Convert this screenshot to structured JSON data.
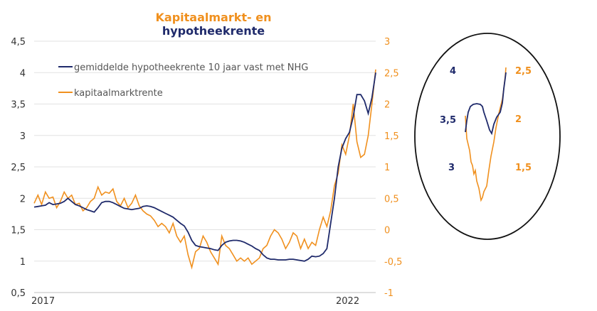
{
  "chart_data": {
    "type": "line",
    "title": [
      "Kapitaalmarkt- en",
      "hypotheekrente"
    ],
    "x_labels": [
      "2017",
      "2022"
    ],
    "y_left": {
      "ticks": [
        "0,5",
        "1",
        "1,5",
        "2",
        "2,5",
        "3",
        "3,5",
        "4",
        "4,5"
      ],
      "range": [
        0.5,
        4.5
      ]
    },
    "y_right": {
      "ticks": [
        "-1",
        "-0,5",
        "0",
        "0,5",
        "1",
        "1,5",
        "2",
        "2,5",
        "3"
      ],
      "range": [
        -1,
        3
      ]
    },
    "series": [
      {
        "name": "gemiddelde hypotheekrente 10 jaar vast met NHG",
        "axis": "left",
        "color": "#1f2a6b",
        "points": [
          [
            0,
            1.86
          ],
          [
            1,
            1.87
          ],
          [
            2,
            1.88
          ],
          [
            3,
            1.89
          ],
          [
            4,
            1.93
          ],
          [
            5,
            1.9
          ],
          [
            6,
            1.91
          ],
          [
            7,
            1.92
          ],
          [
            8,
            1.95
          ],
          [
            9,
            2.0
          ],
          [
            10,
            1.95
          ],
          [
            11,
            1.9
          ],
          [
            12,
            1.88
          ],
          [
            13,
            1.85
          ],
          [
            14,
            1.82
          ],
          [
            15,
            1.8
          ],
          [
            16,
            1.78
          ],
          [
            17,
            1.85
          ],
          [
            18,
            1.93
          ],
          [
            19,
            1.95
          ],
          [
            20,
            1.95
          ],
          [
            21,
            1.93
          ],
          [
            22,
            1.9
          ],
          [
            23,
            1.87
          ],
          [
            24,
            1.84
          ],
          [
            25,
            1.83
          ],
          [
            26,
            1.82
          ],
          [
            27,
            1.83
          ],
          [
            28,
            1.84
          ],
          [
            29,
            1.87
          ],
          [
            30,
            1.88
          ],
          [
            31,
            1.87
          ],
          [
            32,
            1.85
          ],
          [
            33,
            1.82
          ],
          [
            34,
            1.79
          ],
          [
            35,
            1.76
          ],
          [
            36,
            1.73
          ],
          [
            37,
            1.7
          ],
          [
            38,
            1.65
          ],
          [
            39,
            1.6
          ],
          [
            40,
            1.56
          ],
          [
            41,
            1.46
          ],
          [
            42,
            1.33
          ],
          [
            43,
            1.25
          ],
          [
            44,
            1.23
          ],
          [
            45,
            1.22
          ],
          [
            46,
            1.21
          ],
          [
            47,
            1.2
          ],
          [
            48,
            1.18
          ],
          [
            49,
            1.17
          ],
          [
            50,
            1.25
          ],
          [
            51,
            1.3
          ],
          [
            52,
            1.32
          ],
          [
            53,
            1.33
          ],
          [
            54,
            1.33
          ],
          [
            55,
            1.32
          ],
          [
            56,
            1.3
          ],
          [
            57,
            1.27
          ],
          [
            58,
            1.24
          ],
          [
            59,
            1.2
          ],
          [
            60,
            1.17
          ],
          [
            61,
            1.1
          ],
          [
            62,
            1.05
          ],
          [
            63,
            1.03
          ],
          [
            64,
            1.03
          ],
          [
            65,
            1.02
          ],
          [
            66,
            1.02
          ],
          [
            67,
            1.02
          ],
          [
            68,
            1.03
          ],
          [
            69,
            1.03
          ],
          [
            70,
            1.02
          ],
          [
            71,
            1.01
          ],
          [
            72,
            1.0
          ],
          [
            73,
            1.03
          ],
          [
            74,
            1.08
          ],
          [
            75,
            1.07
          ],
          [
            76,
            1.08
          ],
          [
            77,
            1.12
          ],
          [
            78,
            1.2
          ],
          [
            79,
            1.6
          ],
          [
            80,
            2.0
          ],
          [
            81,
            2.5
          ],
          [
            82,
            2.8
          ],
          [
            83,
            2.95
          ],
          [
            84,
            3.05
          ],
          [
            85,
            3.3
          ],
          [
            86,
            3.65
          ],
          [
            87,
            3.65
          ],
          [
            88,
            3.55
          ],
          [
            89,
            3.35
          ],
          [
            90,
            3.6
          ],
          [
            91,
            4.0
          ]
        ]
      },
      {
        "name": "kapitaalmarktrente",
        "axis": "right",
        "color": "#f0901e",
        "points": [
          [
            0,
            0.42
          ],
          [
            1,
            0.55
          ],
          [
            2,
            0.4
          ],
          [
            3,
            0.6
          ],
          [
            4,
            0.5
          ],
          [
            5,
            0.52
          ],
          [
            6,
            0.35
          ],
          [
            7,
            0.45
          ],
          [
            8,
            0.6
          ],
          [
            9,
            0.5
          ],
          [
            10,
            0.55
          ],
          [
            11,
            0.4
          ],
          [
            12,
            0.42
          ],
          [
            13,
            0.3
          ],
          [
            14,
            0.35
          ],
          [
            15,
            0.45
          ],
          [
            16,
            0.5
          ],
          [
            17,
            0.68
          ],
          [
            18,
            0.55
          ],
          [
            19,
            0.6
          ],
          [
            20,
            0.58
          ],
          [
            21,
            0.65
          ],
          [
            22,
            0.45
          ],
          [
            23,
            0.38
          ],
          [
            24,
            0.5
          ],
          [
            25,
            0.35
          ],
          [
            26,
            0.42
          ],
          [
            27,
            0.55
          ],
          [
            28,
            0.38
          ],
          [
            29,
            0.3
          ],
          [
            30,
            0.25
          ],
          [
            31,
            0.22
          ],
          [
            32,
            0.15
          ],
          [
            33,
            0.05
          ],
          [
            34,
            0.1
          ],
          [
            35,
            0.05
          ],
          [
            36,
            -0.05
          ],
          [
            37,
            0.1
          ],
          [
            38,
            -0.1
          ],
          [
            39,
            -0.2
          ],
          [
            40,
            -0.1
          ],
          [
            41,
            -0.4
          ],
          [
            42,
            -0.6
          ],
          [
            43,
            -0.35
          ],
          [
            44,
            -0.3
          ],
          [
            45,
            -0.1
          ],
          [
            46,
            -0.2
          ],
          [
            47,
            -0.35
          ],
          [
            48,
            -0.45
          ],
          [
            49,
            -0.55
          ],
          [
            50,
            -0.1
          ],
          [
            51,
            -0.25
          ],
          [
            52,
            -0.3
          ],
          [
            53,
            -0.4
          ],
          [
            54,
            -0.5
          ],
          [
            55,
            -0.45
          ],
          [
            56,
            -0.5
          ],
          [
            57,
            -0.45
          ],
          [
            58,
            -0.55
          ],
          [
            59,
            -0.5
          ],
          [
            60,
            -0.45
          ],
          [
            61,
            -0.3
          ],
          [
            62,
            -0.25
          ],
          [
            63,
            -0.1
          ],
          [
            64,
            0.0
          ],
          [
            65,
            -0.05
          ],
          [
            66,
            -0.15
          ],
          [
            67,
            -0.3
          ],
          [
            68,
            -0.2
          ],
          [
            69,
            -0.05
          ],
          [
            70,
            -0.1
          ],
          [
            71,
            -0.3
          ],
          [
            72,
            -0.15
          ],
          [
            73,
            -0.3
          ],
          [
            74,
            -0.2
          ],
          [
            75,
            -0.25
          ],
          [
            76,
            0.0
          ],
          [
            77,
            0.2
          ],
          [
            78,
            0.05
          ],
          [
            79,
            0.3
          ],
          [
            80,
            0.7
          ],
          [
            81,
            0.9
          ],
          [
            82,
            1.35
          ],
          [
            83,
            1.2
          ],
          [
            84,
            1.5
          ],
          [
            85,
            2.0
          ],
          [
            86,
            1.4
          ],
          [
            87,
            1.15
          ],
          [
            88,
            1.2
          ],
          [
            89,
            1.5
          ],
          [
            90,
            2.0
          ],
          [
            91,
            2.55
          ]
        ]
      }
    ],
    "inset": {
      "labels_left": [
        "4",
        "3,5",
        "3"
      ],
      "labels_right": [
        "2,5",
        "2",
        "1,5"
      ]
    }
  }
}
